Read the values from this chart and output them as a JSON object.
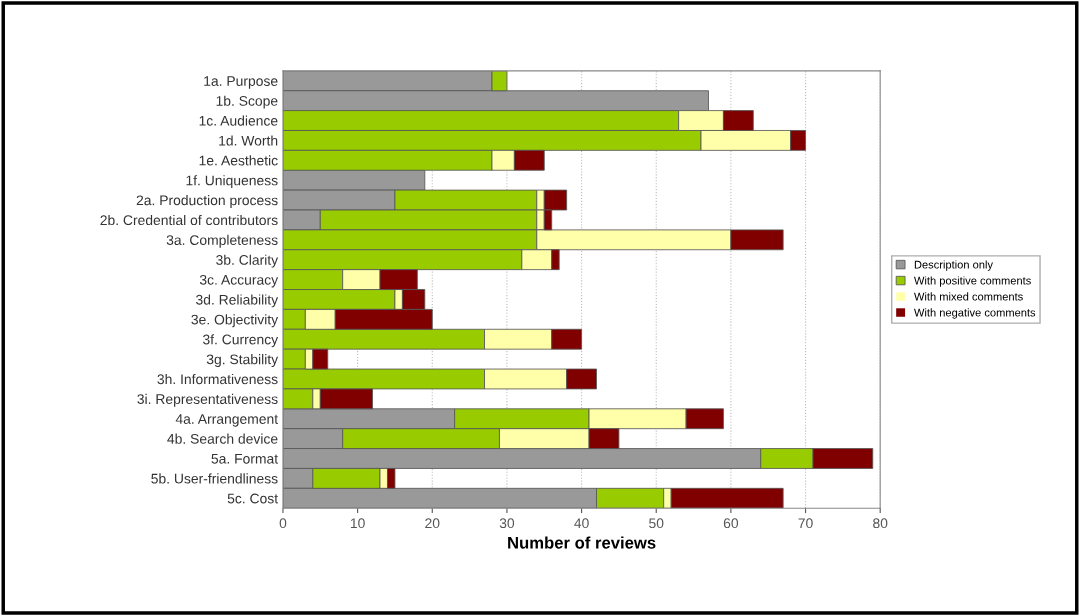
{
  "chart_data": {
    "type": "bar",
    "orientation": "horizontal",
    "stacked": true,
    "xlabel": "Number of reviews",
    "categories": [
      "1a. Purpose",
      "1b. Scope",
      "1c. Audience",
      "1d. Worth",
      "1e. Aesthetic",
      "1f. Uniqueness",
      "2a. Production process",
      "2b. Credential of contributors",
      "3a. Completeness",
      "3b. Clarity",
      "3c. Accuracy",
      "3d. Reliability",
      "3e. Objectivity",
      "3f. Currency",
      "3g. Stability",
      "3h. Informativeness",
      "3i. Representativeness",
      "4a. Arrangement",
      "4b. Search device",
      "5a. Format",
      "5b. User-friendliness",
      "5c. Cost"
    ],
    "series": [
      {
        "name": "Description only",
        "color": "#999999",
        "values": [
          28,
          57,
          0,
          0,
          0,
          19,
          15,
          5,
          0,
          0,
          0,
          0,
          0,
          0,
          0,
          0,
          0,
          23,
          8,
          64,
          4,
          42
        ]
      },
      {
        "name": "With positive comments",
        "color": "#99cc00",
        "values": [
          2,
          0,
          53,
          56,
          28,
          0,
          19,
          29,
          34,
          32,
          8,
          15,
          3,
          27,
          3,
          27,
          4,
          18,
          21,
          7,
          9,
          9
        ]
      },
      {
        "name": "With mixed comments",
        "color": "#ffffaa",
        "values": [
          0,
          0,
          6,
          12,
          3,
          0,
          1,
          1,
          26,
          4,
          5,
          1,
          4,
          9,
          1,
          11,
          1,
          13,
          12,
          0,
          1,
          1
        ]
      },
      {
        "name": "With negative comments",
        "color": "#800000",
        "values": [
          0,
          0,
          4,
          2,
          4,
          0,
          3,
          1,
          7,
          1,
          5,
          3,
          13,
          4,
          2,
          4,
          7,
          5,
          4,
          8,
          1,
          15
        ]
      }
    ],
    "xlim": [
      0,
      80
    ],
    "xticks": [
      0,
      10,
      20,
      30,
      40,
      50,
      60,
      70,
      80
    ],
    "grid": "x",
    "legend": "right"
  }
}
